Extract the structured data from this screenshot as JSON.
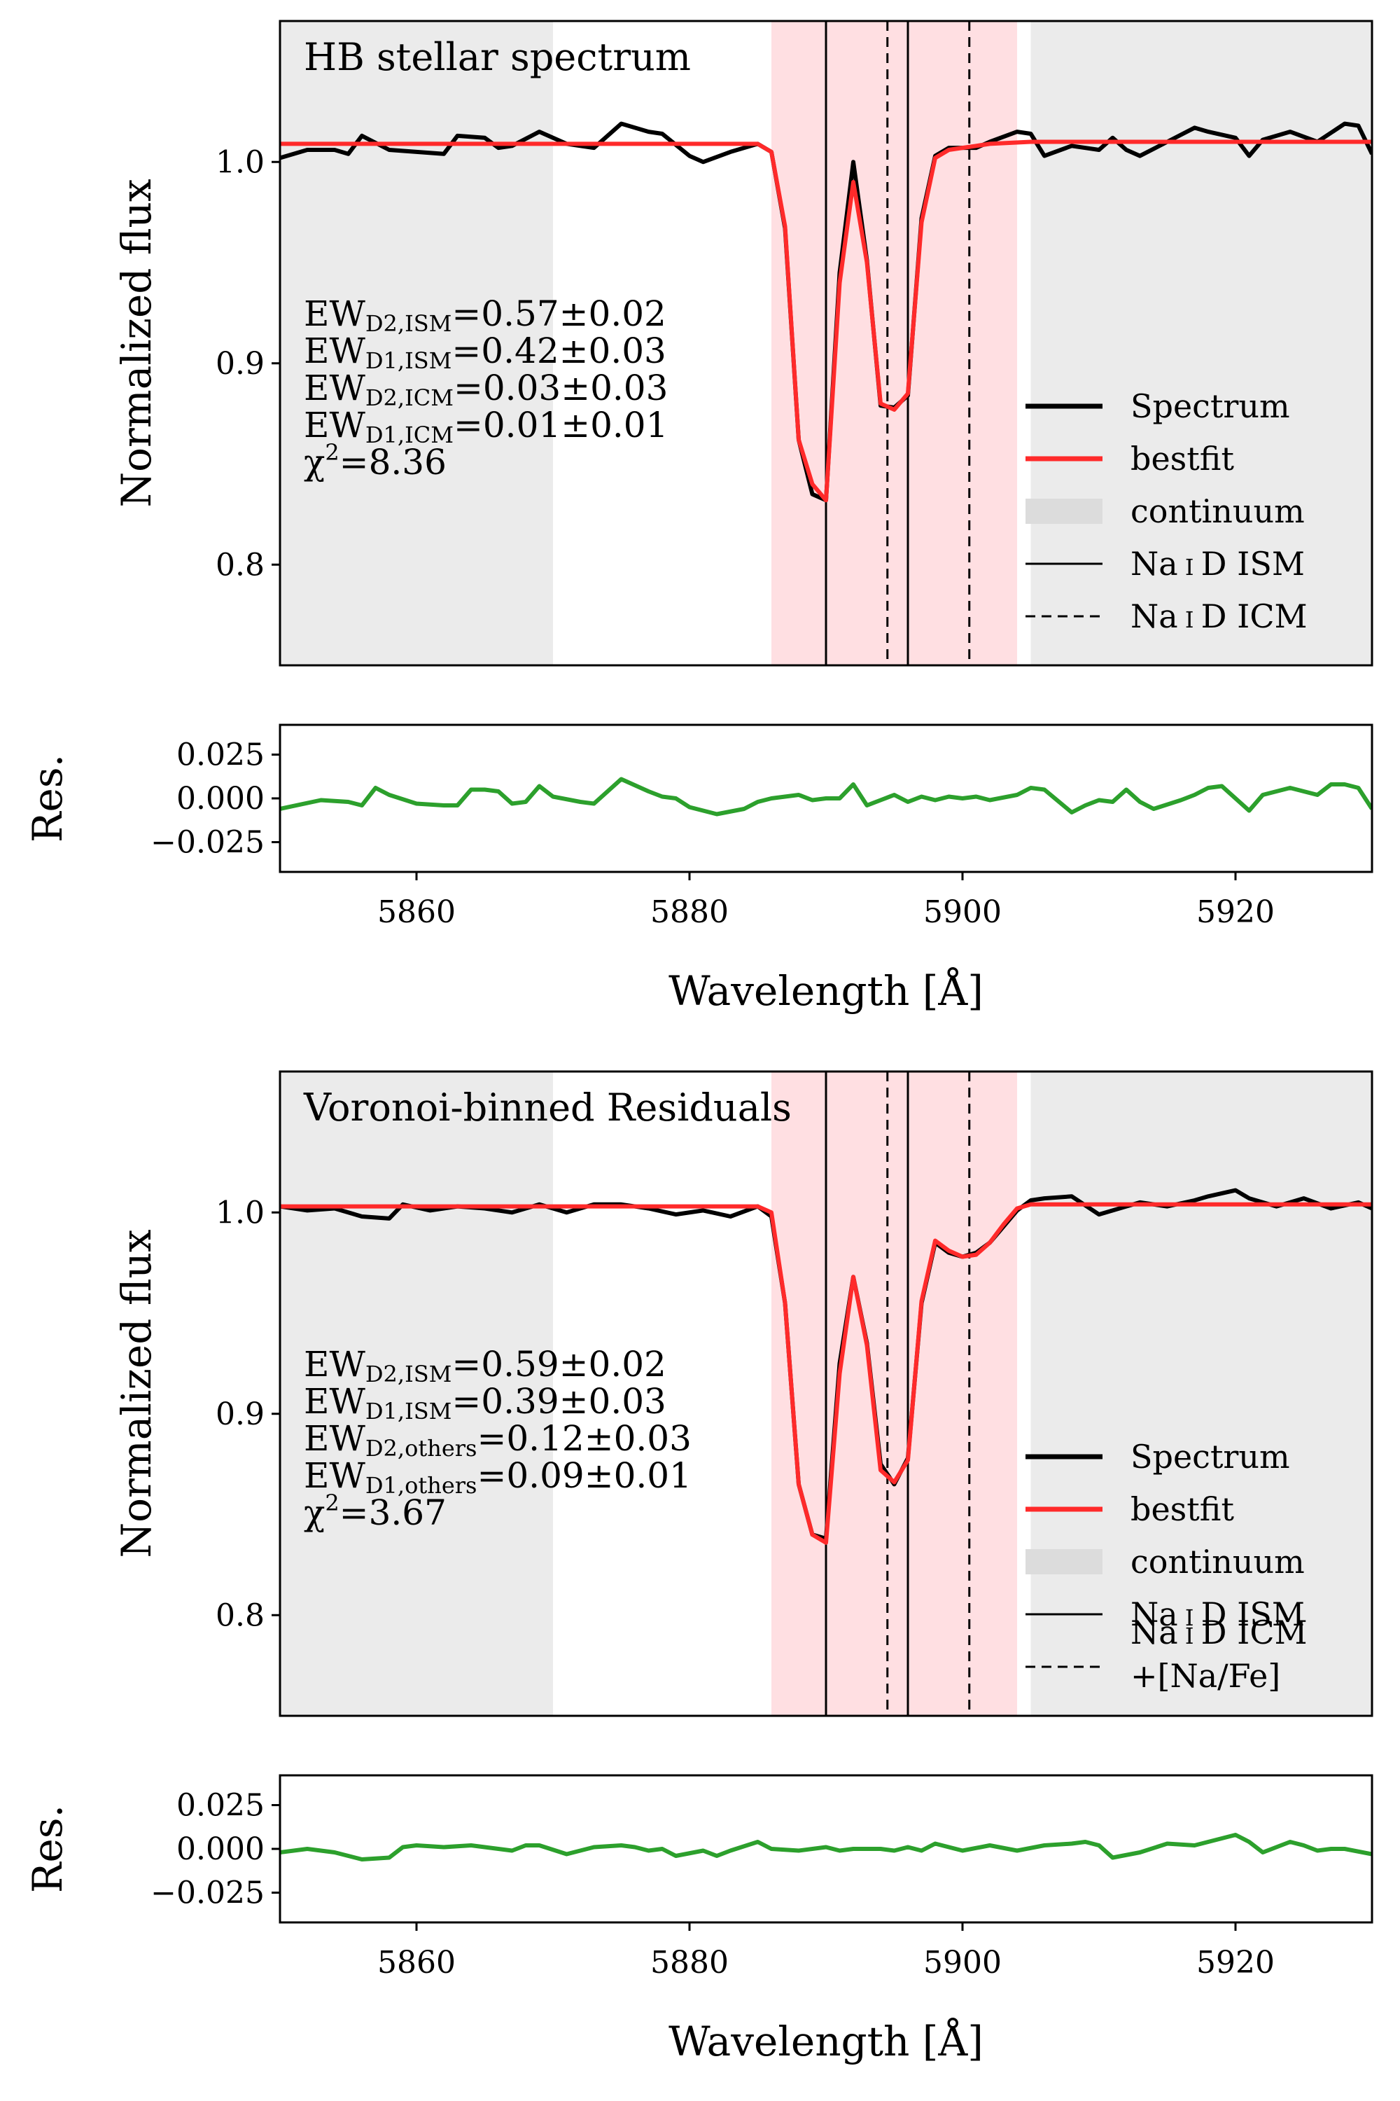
{
  "colors": {
    "spectrum": "#000000",
    "bestfit": "#ff2a2a",
    "residual": "#2ca02c",
    "continuum_band": "#ebebeb",
    "nad_band": "#ffdfe2"
  },
  "chart_data": [
    {
      "type": "line",
      "title": "HB stellar spectrum",
      "xlabel": "",
      "ylabel": "Normalized flux",
      "xlim": [
        5850,
        5930
      ],
      "ylim": [
        0.75,
        1.07
      ],
      "yticks": [
        "0.8",
        "0.9",
        "1.0"
      ],
      "grid": false,
      "continuum_regions": [
        [
          5850,
          5870
        ],
        [
          5905,
          5930
        ]
      ],
      "nad_region": [
        5886,
        5904
      ],
      "ism_lines": [
        5890,
        5896
      ],
      "icm_lines": [
        5894.5,
        5900.5
      ],
      "annotations": [
        {
          "main": "EW",
          "sub": "D2,ISM",
          "rest": "=0.57±0.02"
        },
        {
          "main": "EW",
          "sub": "D1,ISM",
          "rest": "=0.42±0.03"
        },
        {
          "main": "EW",
          "sub": "D2,ICM",
          "rest": "=0.03±0.03"
        },
        {
          "main": "EW",
          "sub": "D1,ICM",
          "rest": "=0.01±0.01"
        },
        {
          "main": "χ",
          "sup": "2",
          "rest": "=8.36"
        }
      ],
      "legend": {
        "placement": "lower-right",
        "entries": [
          {
            "kind": "thick-line",
            "color": "#000000",
            "label": [
              "Spectrum"
            ]
          },
          {
            "kind": "thick-line",
            "color": "#ff2a2a",
            "label": [
              "bestfit"
            ]
          },
          {
            "kind": "patch",
            "color": "#dcdcdc",
            "label": [
              "continuum"
            ]
          },
          {
            "kind": "line",
            "color": "#000000",
            "label": [
              "Na I D ISM"
            ]
          },
          {
            "kind": "dashed",
            "color": "#000000",
            "label": [
              "Na I D ICM"
            ]
          }
        ]
      },
      "series": [
        {
          "name": "Spectrum",
          "x": [
            5850,
            5852,
            5854,
            5855,
            5856,
            5858,
            5860,
            5862,
            5863,
            5865,
            5866,
            5867,
            5869,
            5871,
            5873,
            5875,
            5877,
            5878,
            5880,
            5881,
            5883,
            5885,
            5886,
            5887,
            5888,
            5889,
            5890,
            5891,
            5892,
            5893,
            5894,
            5895,
            5896,
            5897,
            5898,
            5899,
            5901,
            5902,
            5904,
            5905,
            5906,
            5908,
            5910,
            5911,
            5912,
            5913,
            5915,
            5917,
            5918,
            5920,
            5921,
            5922,
            5924,
            5926,
            5928,
            5929,
            5930
          ],
          "y": [
            1.002,
            1.006,
            1.006,
            1.004,
            1.013,
            1.006,
            1.005,
            1.004,
            1.013,
            1.012,
            1.007,
            1.008,
            1.015,
            1.009,
            1.007,
            1.019,
            1.015,
            1.014,
            1.003,
            1.0,
            1.005,
            1.009,
            1.005,
            0.967,
            0.862,
            0.835,
            0.832,
            0.945,
            1.0,
            0.951,
            0.879,
            0.878,
            0.884,
            0.972,
            1.003,
            1.007,
            1.007,
            1.01,
            1.015,
            1.014,
            1.003,
            1.008,
            1.006,
            1.012,
            1.006,
            1.003,
            1.01,
            1.017,
            1.015,
            1.012,
            1.003,
            1.011,
            1.015,
            1.01,
            1.019,
            1.018,
            1.004
          ]
        },
        {
          "name": "bestfit",
          "x": [
            5850,
            5885,
            5886,
            5887,
            5888,
            5889,
            5890,
            5891,
            5892,
            5893,
            5894,
            5895,
            5896,
            5897,
            5898,
            5899,
            5900,
            5901,
            5902,
            5905,
            5930
          ],
          "y": [
            1.009,
            1.009,
            1.005,
            0.968,
            0.862,
            0.84,
            0.832,
            0.94,
            0.99,
            0.95,
            0.88,
            0.877,
            0.885,
            0.97,
            1.002,
            1.006,
            1.007,
            1.008,
            1.009,
            1.01,
            1.01
          ]
        }
      ]
    },
    {
      "type": "line",
      "title": "",
      "xlabel": "Wavelength [Å]",
      "ylabel": "Res.",
      "xlim": [
        5850,
        5930
      ],
      "ylim": [
        -0.042,
        0.042
      ],
      "xticks": [
        "5860",
        "5880",
        "5900",
        "5920"
      ],
      "yticks": [
        "0.025",
        "0.000",
        "−0.025"
      ],
      "grid": false,
      "series": [
        {
          "name": "Residual",
          "x": [
            5850,
            5853,
            5855,
            5856,
            5857,
            5858,
            5860,
            5862,
            5863,
            5864,
            5865,
            5866,
            5867,
            5868,
            5869,
            5870,
            5872,
            5873,
            5875,
            5877,
            5878,
            5879,
            5880,
            5881,
            5882,
            5884,
            5885,
            5886,
            5887,
            5888,
            5889,
            5890,
            5891,
            5892,
            5893,
            5894,
            5895,
            5896,
            5897,
            5898,
            5899,
            5900,
            5901,
            5902,
            5904,
            5905,
            5906,
            5908,
            5909,
            5910,
            5911,
            5912,
            5913,
            5914,
            5916,
            5917,
            5918,
            5919,
            5920,
            5921,
            5922,
            5923,
            5924,
            5926,
            5927,
            5928,
            5929,
            5930
          ],
          "y": [
            -0.006,
            -0.001,
            -0.002,
            -0.004,
            0.006,
            0.002,
            -0.003,
            -0.004,
            -0.004,
            0.005,
            0.005,
            0.004,
            -0.003,
            -0.002,
            0.007,
            0.001,
            -0.002,
            -0.003,
            0.011,
            0.004,
            0.001,
            0.0,
            -0.005,
            -0.007,
            -0.009,
            -0.006,
            -0.002,
            0.0,
            0.001,
            0.002,
            -0.001,
            0.0,
            0.0,
            0.008,
            -0.004,
            -0.001,
            0.002,
            -0.002,
            0.001,
            -0.001,
            0.001,
            0.0,
            0.001,
            -0.001,
            0.002,
            0.006,
            0.005,
            -0.008,
            -0.004,
            -0.001,
            -0.002,
            0.005,
            -0.002,
            -0.006,
            -0.001,
            0.002,
            0.006,
            0.007,
            0.0,
            -0.007,
            0.002,
            0.004,
            0.006,
            0.002,
            0.008,
            0.008,
            0.006,
            -0.006
          ]
        }
      ]
    },
    {
      "type": "line",
      "title": "Voronoi-binned Residuals",
      "xlabel": "",
      "ylabel": "Normalized flux",
      "xlim": [
        5850,
        5930
      ],
      "ylim": [
        0.75,
        1.07
      ],
      "yticks": [
        "0.8",
        "0.9",
        "1.0"
      ],
      "grid": false,
      "continuum_regions": [
        [
          5850,
          5870
        ],
        [
          5905,
          5930
        ]
      ],
      "nad_region": [
        5886,
        5904
      ],
      "ism_lines": [
        5890,
        5896
      ],
      "icm_lines": [
        5894.5,
        5900.5
      ],
      "annotations": [
        {
          "main": "EW",
          "sub": "D2,ISM",
          "rest": "=0.59±0.02"
        },
        {
          "main": "EW",
          "sub": "D1,ISM",
          "rest": "=0.39±0.03"
        },
        {
          "main": "EW",
          "sub": "D2,others",
          "rest": "=0.12±0.03"
        },
        {
          "main": "EW",
          "sub": "D1,others",
          "rest": "=0.09±0.01"
        },
        {
          "main": "χ",
          "sup": "2",
          "rest": "=3.67"
        }
      ],
      "legend": {
        "placement": "lower-right",
        "entries": [
          {
            "kind": "thick-line",
            "color": "#000000",
            "label": [
              "Spectrum"
            ]
          },
          {
            "kind": "thick-line",
            "color": "#ff2a2a",
            "label": [
              "bestfit"
            ]
          },
          {
            "kind": "patch",
            "color": "#dcdcdc",
            "label": [
              "continuum"
            ]
          },
          {
            "kind": "line",
            "color": "#000000",
            "label": [
              "Na I D ISM"
            ]
          },
          {
            "kind": "dashed",
            "color": "#000000",
            "label": [
              "Na I D ICM",
              "+[Na/Fe]"
            ]
          }
        ]
      },
      "series": [
        {
          "name": "Spectrum",
          "x": [
            5850,
            5852,
            5854,
            5856,
            5858,
            5859,
            5861,
            5863,
            5865,
            5867,
            5869,
            5871,
            5873,
            5875,
            5877,
            5879,
            5881,
            5883,
            5885,
            5886,
            5887,
            5888,
            5889,
            5890,
            5891,
            5892,
            5893,
            5894,
            5895,
            5896,
            5897,
            5898,
            5899,
            5900,
            5901,
            5902,
            5903,
            5904,
            5905,
            5906,
            5908,
            5910,
            5911,
            5913,
            5915,
            5917,
            5918,
            5920,
            5921,
            5923,
            5925,
            5927,
            5929,
            5930
          ],
          "y": [
            1.003,
            1.001,
            1.002,
            0.998,
            0.997,
            1.004,
            1.001,
            1.003,
            1.002,
            1.0,
            1.004,
            1.0,
            1.004,
            1.004,
            1.002,
            0.999,
            1.001,
            0.998,
            1.003,
            0.998,
            0.955,
            0.865,
            0.84,
            0.838,
            0.925,
            0.968,
            0.935,
            0.875,
            0.865,
            0.878,
            0.955,
            0.985,
            0.98,
            0.978,
            0.98,
            0.985,
            0.993,
            1.001,
            1.006,
            1.007,
            1.008,
            0.999,
            1.001,
            1.005,
            1.003,
            1.006,
            1.008,
            1.011,
            1.007,
            1.003,
            1.007,
            1.002,
            1.005,
            1.002
          ]
        },
        {
          "name": "bestfit",
          "x": [
            5850,
            5885,
            5886,
            5887,
            5888,
            5889,
            5890,
            5891,
            5892,
            5893,
            5894,
            5895,
            5896,
            5897,
            5898,
            5899,
            5900,
            5901,
            5902,
            5903,
            5904,
            5905,
            5930
          ],
          "y": [
            1.003,
            1.003,
            1.0,
            0.955,
            0.865,
            0.84,
            0.836,
            0.92,
            0.968,
            0.934,
            0.872,
            0.866,
            0.877,
            0.956,
            0.986,
            0.981,
            0.978,
            0.979,
            0.985,
            0.994,
            1.002,
            1.004,
            1.004
          ]
        }
      ]
    },
    {
      "type": "line",
      "title": "",
      "xlabel": "Wavelength [Å]",
      "ylabel": "Res.",
      "xlim": [
        5850,
        5930
      ],
      "ylim": [
        -0.042,
        0.042
      ],
      "xticks": [
        "5860",
        "5880",
        "5900",
        "5920"
      ],
      "yticks": [
        "0.025",
        "0.000",
        "−0.025"
      ],
      "grid": false,
      "series": [
        {
          "name": "Residual",
          "x": [
            5850,
            5852,
            5854,
            5856,
            5858,
            5859,
            5860,
            5862,
            5864,
            5866,
            5867,
            5868,
            5869,
            5871,
            5873,
            5875,
            5876,
            5877,
            5878,
            5879,
            5881,
            5882,
            5883,
            5885,
            5886,
            5888,
            5890,
            5891,
            5892,
            5894,
            5895,
            5896,
            5897,
            5898,
            5899,
            5900,
            5902,
            5904,
            5906,
            5908,
            5909,
            5910,
            5911,
            5913,
            5915,
            5917,
            5918,
            5920,
            5921,
            5922,
            5924,
            5925,
            5926,
            5927,
            5928,
            5930
          ],
          "y": [
            -0.002,
            0.0,
            -0.002,
            -0.006,
            -0.005,
            0.001,
            0.002,
            0.001,
            0.002,
            0.0,
            -0.001,
            0.002,
            0.002,
            -0.003,
            0.001,
            0.002,
            0.001,
            -0.001,
            0.0,
            -0.004,
            -0.001,
            -0.004,
            -0.001,
            0.004,
            0.0,
            -0.001,
            0.001,
            -0.001,
            0.0,
            0.0,
            -0.001,
            0.001,
            -0.001,
            0.003,
            0.001,
            -0.001,
            0.002,
            -0.001,
            0.002,
            0.003,
            0.004,
            0.002,
            -0.005,
            -0.002,
            0.003,
            0.002,
            0.004,
            0.008,
            0.004,
            -0.002,
            0.004,
            0.002,
            -0.001,
            0.0,
            0.0,
            -0.003
          ]
        }
      ]
    }
  ]
}
